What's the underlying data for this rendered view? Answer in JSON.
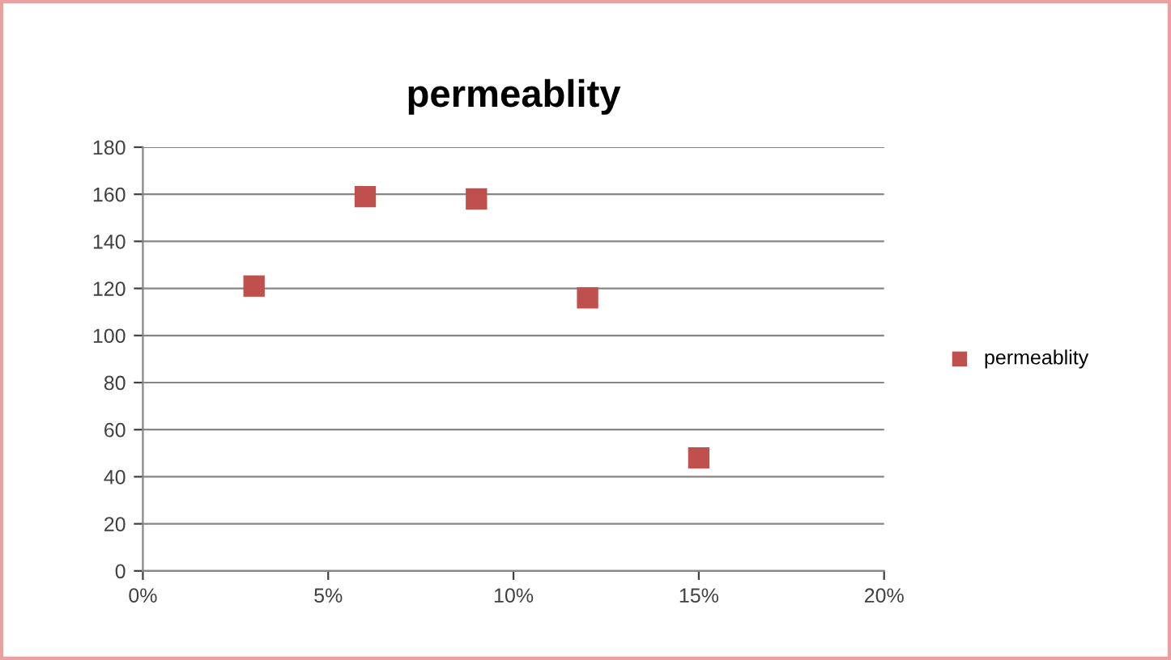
{
  "chart_data": {
    "type": "scatter",
    "title": "permeablity",
    "x": [
      3,
      6,
      9,
      12,
      15
    ],
    "series": [
      {
        "name": "permeablity",
        "color": "#c0504d",
        "values": [
          121,
          159,
          158,
          116,
          48
        ]
      }
    ],
    "xlim": [
      0,
      20
    ],
    "xticks": [
      {
        "value": 0,
        "label": "0%"
      },
      {
        "value": 5,
        "label": "5%"
      },
      {
        "value": 10,
        "label": "10%"
      },
      {
        "value": 15,
        "label": "15%"
      },
      {
        "value": 20,
        "label": "20%"
      }
    ],
    "ylim": [
      0,
      180
    ],
    "yticks": [
      0,
      20,
      40,
      60,
      80,
      100,
      120,
      140,
      160,
      180
    ],
    "grid": "y",
    "legend": "right",
    "marker": "square"
  }
}
